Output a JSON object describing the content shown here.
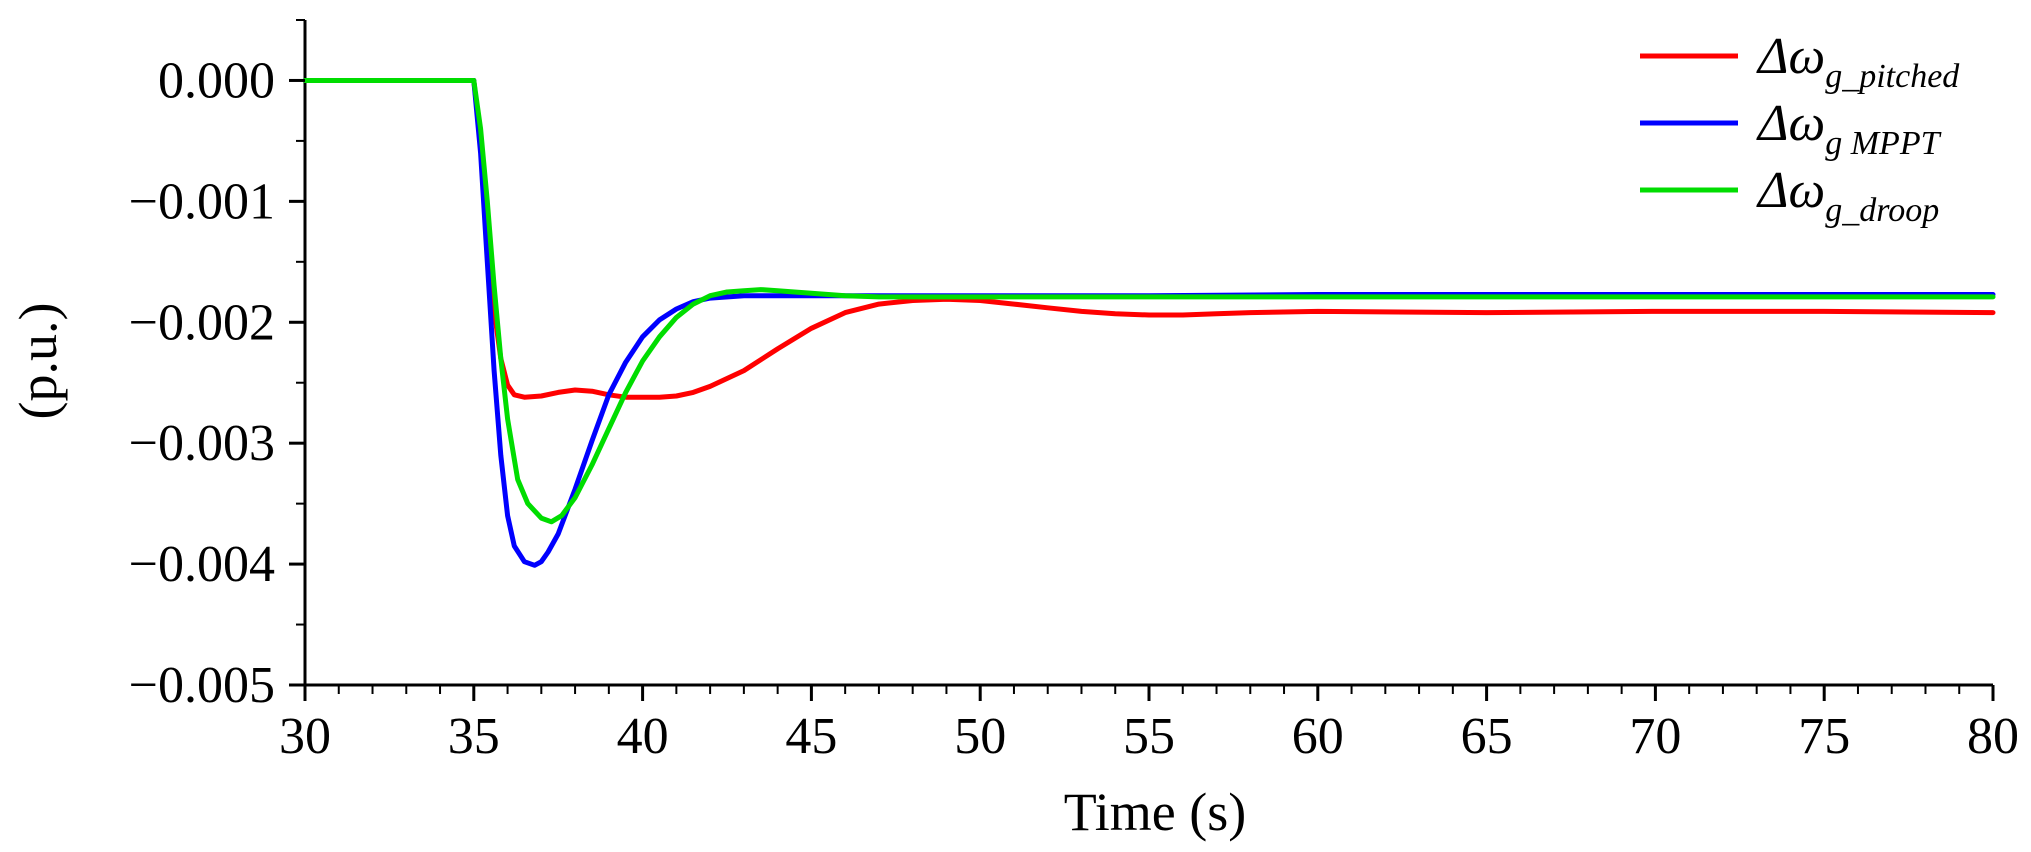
{
  "chart_data": {
    "type": "line",
    "title": "",
    "xlabel": "Time (s)",
    "ylabel": "(p.u.)",
    "xlim": [
      30,
      80
    ],
    "ylim": [
      -0.005,
      0.0005
    ],
    "x_ticks": [
      30,
      35,
      40,
      45,
      50,
      55,
      60,
      65,
      70,
      75,
      80
    ],
    "x_tick_labels": [
      "30",
      "35",
      "40",
      "45",
      "50",
      "55",
      "60",
      "65",
      "70",
      "75",
      "80"
    ],
    "y_ticks": [
      0,
      -0.001,
      -0.002,
      -0.003,
      -0.004,
      -0.005
    ],
    "y_tick_labels": [
      "0.000",
      "−0.001",
      "−0.002",
      "−0.003",
      "−0.004",
      "−0.005"
    ],
    "grid": false,
    "legend_position": "top-right",
    "series": [
      {
        "name": "Δω g_pitched",
        "legend_base": "Δω",
        "legend_sub": "g_pitched",
        "color": "#ff0000",
        "x": [
          30,
          35.0,
          35.2,
          35.4,
          35.6,
          35.8,
          36.0,
          36.2,
          36.5,
          37.0,
          37.5,
          38.0,
          38.5,
          39.0,
          39.5,
          40.0,
          40.5,
          41.0,
          41.5,
          42.0,
          43.0,
          44.0,
          45.0,
          46.0,
          47.0,
          48.0,
          49.0,
          50.0,
          51.0,
          52.0,
          53.0,
          54.0,
          55.0,
          56.0,
          57.0,
          58.0,
          60.0,
          65.0,
          70.0,
          75.0,
          80.0
        ],
        "y": [
          0,
          0,
          -0.0005,
          -0.0012,
          -0.0019,
          -0.0023,
          -0.00252,
          -0.0026,
          -0.00262,
          -0.00261,
          -0.00258,
          -0.00256,
          -0.00257,
          -0.0026,
          -0.00262,
          -0.00262,
          -0.00262,
          -0.00261,
          -0.00258,
          -0.00253,
          -0.0024,
          -0.00222,
          -0.00205,
          -0.00192,
          -0.00185,
          -0.00182,
          -0.00181,
          -0.00182,
          -0.00185,
          -0.00188,
          -0.00191,
          -0.00193,
          -0.00194,
          -0.00194,
          -0.00193,
          -0.00192,
          -0.00191,
          -0.00192,
          -0.00191,
          -0.00191,
          -0.00192
        ]
      },
      {
        "name": "Δω g_MPPT",
        "legend_base": "Δω",
        "legend_sub": "g MPPT",
        "color": "#0000ff",
        "x": [
          30,
          35.0,
          35.2,
          35.4,
          35.6,
          35.8,
          36.0,
          36.2,
          36.5,
          36.8,
          37.0,
          37.2,
          37.5,
          38.0,
          38.5,
          39.0,
          39.5,
          40.0,
          40.5,
          41.0,
          41.5,
          42.0,
          43.0,
          44.0,
          45.0,
          47.0,
          50.0,
          55.0,
          60.0,
          65.0,
          70.0,
          75.0,
          80.0
        ],
        "y": [
          0,
          0,
          -0.0006,
          -0.0015,
          -0.0024,
          -0.0031,
          -0.0036,
          -0.00385,
          -0.00398,
          -0.00401,
          -0.00398,
          -0.0039,
          -0.00375,
          -0.00338,
          -0.00298,
          -0.0026,
          -0.00233,
          -0.00212,
          -0.00198,
          -0.00189,
          -0.00183,
          -0.0018,
          -0.00178,
          -0.00178,
          -0.00178,
          -0.00178,
          -0.00178,
          -0.00178,
          -0.00177,
          -0.00177,
          -0.00177,
          -0.00177,
          -0.00177
        ]
      },
      {
        "name": "Δω g_droop",
        "legend_base": "Δω",
        "legend_sub": "g_droop",
        "color": "#00dd00",
        "x": [
          30,
          35.0,
          35.2,
          35.4,
          35.6,
          35.8,
          36.0,
          36.3,
          36.6,
          37.0,
          37.3,
          37.6,
          38.0,
          38.5,
          39.0,
          39.5,
          40.0,
          40.5,
          41.0,
          41.5,
          42.0,
          42.5,
          43.0,
          43.5,
          44.0,
          45.0,
          46.0,
          47.0,
          48.0,
          50.0,
          55.0,
          60.0,
          65.0,
          70.0,
          75.0,
          80.0
        ],
        "y": [
          0,
          0,
          -0.0004,
          -0.001,
          -0.0017,
          -0.0023,
          -0.0028,
          -0.0033,
          -0.0035,
          -0.00362,
          -0.00365,
          -0.0036,
          -0.00345,
          -0.00318,
          -0.00288,
          -0.00258,
          -0.00232,
          -0.00212,
          -0.00196,
          -0.00185,
          -0.00178,
          -0.00175,
          -0.00174,
          -0.00173,
          -0.00174,
          -0.00176,
          -0.00178,
          -0.00179,
          -0.00179,
          -0.00179,
          -0.00179,
          -0.00179,
          -0.00179,
          -0.00179,
          -0.00179,
          -0.00179
        ]
      }
    ]
  }
}
